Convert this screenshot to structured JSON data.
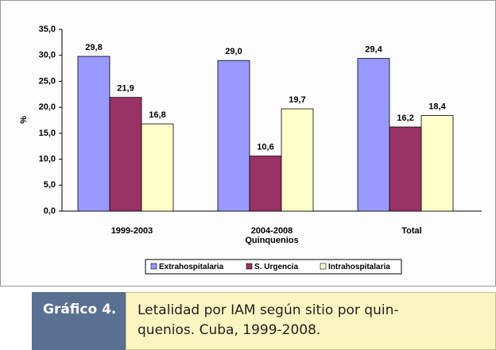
{
  "chart_data": {
    "type": "bar",
    "ylabel": "%",
    "xlabel": "Quinquenios",
    "categories": [
      "1999-2003",
      "2004-2008",
      "Total"
    ],
    "series": [
      {
        "name": "Extrahospitalaria",
        "color": "#9999ff",
        "values": [
          29.8,
          29.0,
          29.4
        ],
        "value_labels": [
          "29,8",
          "29,0",
          "29,4"
        ]
      },
      {
        "name": "S. Urgencia",
        "color": "#993366",
        "values": [
          21.9,
          10.6,
          16.2
        ],
        "value_labels": [
          "21,9",
          "10,6",
          "16,2"
        ]
      },
      {
        "name": "Intrahospitalaria",
        "color": "#ffffcc",
        "values": [
          16.8,
          19.7,
          18.4
        ],
        "value_labels": [
          "16,8",
          "19,7",
          "18,4"
        ]
      }
    ],
    "ylim": [
      0,
      35
    ],
    "yticks": [
      {
        "value": 0,
        "label": "0,0"
      },
      {
        "value": 5,
        "label": "5,0"
      },
      {
        "value": 10,
        "label": "10,0"
      },
      {
        "value": 15,
        "label": "15,0"
      },
      {
        "value": 20,
        "label": "20,0"
      },
      {
        "value": 25,
        "label": "25,0"
      },
      {
        "value": 30,
        "label": "30,0"
      },
      {
        "value": 35,
        "label": "35,0"
      }
    ],
    "legend": "bottom"
  },
  "caption": {
    "label": "Gráfico 4.",
    "lines": [
      "Letalidad por IAM según sitio por quin-",
      "quenios. Cuba, 1999-2008."
    ]
  }
}
